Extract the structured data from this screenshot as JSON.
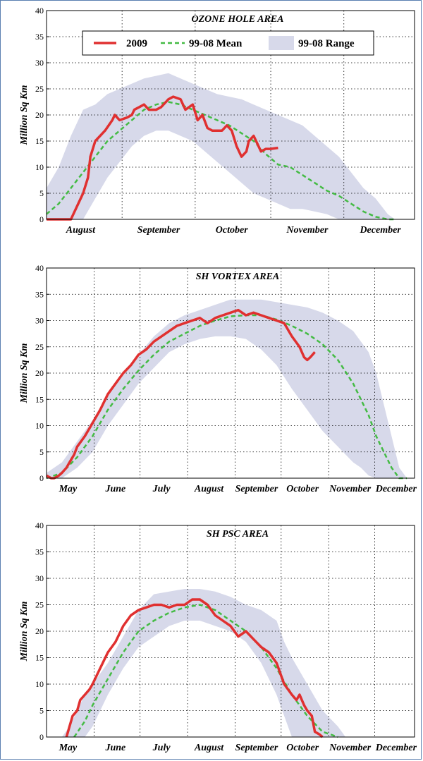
{
  "colors": {
    "obs": "#e03030",
    "mean": "#44bb44",
    "range": "#d7d9ea",
    "frame": "#5a7fb0"
  },
  "legend": {
    "obs": "2009",
    "mean": "99-08 Mean",
    "range": "99-08 Range"
  },
  "chart_data": [
    {
      "type": "area",
      "title": "OZONE HOLE AREA",
      "ylabel": "Million Sq Km",
      "ylim": [
        0,
        40
      ],
      "yticks": [
        0,
        5,
        10,
        15,
        20,
        25,
        30,
        35,
        40
      ],
      "xlim": [
        0,
        151
      ],
      "month_labels": [
        "August",
        "September",
        "October",
        "November",
        "December"
      ],
      "month_label_days": [
        14,
        46,
        76,
        107,
        137
      ],
      "gridlines_days": [
        31,
        61,
        92,
        122
      ],
      "grid": true,
      "legend": "top",
      "series": [
        {
          "name": "2009",
          "style": "solid-red",
          "x": [
            0,
            10,
            12,
            15,
            17,
            18,
            20,
            24,
            27,
            28,
            30,
            33,
            35,
            36,
            38,
            40,
            42,
            45,
            47,
            50,
            52,
            55,
            57,
            60,
            62,
            64,
            66,
            68,
            70,
            72,
            74,
            76,
            78,
            80,
            82,
            83,
            85,
            88,
            90,
            92,
            95
          ],
          "y": [
            0,
            0,
            2,
            5,
            8,
            12,
            15,
            17,
            19,
            20,
            19,
            19.5,
            20,
            21,
            21.5,
            22,
            21,
            21,
            21.5,
            23,
            23.5,
            23,
            21,
            22,
            19,
            20,
            17.5,
            17,
            17,
            17,
            18,
            17,
            14,
            12,
            13,
            15,
            16,
            13,
            13.5,
            13.5,
            13.7
          ]
        },
        {
          "name": "99-08 Mean",
          "style": "dashed-green",
          "x": [
            0,
            5,
            10,
            15,
            20,
            25,
            30,
            35,
            40,
            45,
            50,
            55,
            60,
            65,
            70,
            75,
            80,
            85,
            90,
            95,
            100,
            105,
            110,
            115,
            120,
            125,
            130,
            135,
            140,
            143
          ],
          "y": [
            1,
            3,
            6,
            9,
            12,
            15,
            17,
            19,
            21,
            22,
            22.5,
            22,
            21,
            20,
            19,
            18,
            16.5,
            15,
            12.5,
            10.5,
            10,
            8.5,
            7,
            5.5,
            4.5,
            3,
            1.5,
            0.5,
            0,
            0
          ]
        },
        {
          "name": "99-08 Range",
          "style": "band",
          "x": [
            0,
            5,
            10,
            15,
            20,
            25,
            30,
            35,
            40,
            45,
            50,
            55,
            60,
            65,
            70,
            75,
            80,
            85,
            90,
            95,
            100,
            105,
            110,
            115,
            120,
            125,
            130,
            135,
            140,
            143
          ],
          "low": [
            0,
            0,
            0,
            0,
            4,
            8,
            11,
            14,
            16,
            17,
            17,
            16,
            15,
            13,
            11,
            9,
            7,
            5,
            4,
            3,
            2,
            2,
            1.5,
            1,
            0,
            0,
            0,
            0,
            0,
            0
          ],
          "high": [
            6,
            10,
            16,
            21,
            22,
            24,
            25,
            26,
            27,
            27.5,
            28,
            27,
            26,
            25,
            24,
            23.5,
            23,
            22,
            21,
            20,
            19,
            18,
            16,
            14,
            12,
            9,
            6,
            4,
            1,
            0
          ]
        }
      ]
    },
    {
      "type": "area",
      "title": "SH VORTEX AREA",
      "ylabel": "Million Sq Km",
      "ylim": [
        0,
        40
      ],
      "yticks": [
        0,
        5,
        10,
        15,
        20,
        25,
        30,
        35,
        40
      ],
      "xlim": [
        0,
        240
      ],
      "month_labels": [
        "May",
        "June",
        "July",
        "August",
        "September",
        "October",
        "November",
        "December"
      ],
      "month_label_days": [
        14,
        45,
        75,
        106,
        137,
        167,
        198,
        228
      ],
      "gridlines_days": [
        31,
        61,
        92,
        123,
        153,
        184,
        214
      ],
      "grid": true,
      "series": [
        {
          "name": "2009",
          "style": "solid-red",
          "x": [
            0,
            3,
            5,
            8,
            10,
            13,
            15,
            18,
            20,
            25,
            30,
            35,
            40,
            45,
            50,
            55,
            60,
            65,
            70,
            75,
            80,
            85,
            90,
            95,
            100,
            105,
            110,
            115,
            120,
            125,
            130,
            135,
            140,
            145,
            150,
            155,
            160,
            165,
            168,
            170,
            172,
            175
          ],
          "y": [
            0.5,
            0,
            0,
            0.5,
            1,
            2,
            3,
            4.5,
            6,
            8,
            10.5,
            13,
            16,
            18,
            20,
            21.5,
            23.5,
            24.5,
            26,
            27,
            28,
            29,
            29.5,
            30,
            30.5,
            29.5,
            30.5,
            31,
            31.5,
            32,
            31,
            31.5,
            31,
            30.5,
            30,
            29.5,
            27,
            25,
            23,
            22.5,
            23,
            24
          ]
        },
        {
          "name": "99-08 Mean",
          "style": "dashed-green",
          "x": [
            0,
            10,
            20,
            30,
            40,
            50,
            60,
            70,
            80,
            90,
            100,
            110,
            120,
            130,
            140,
            150,
            160,
            170,
            180,
            190,
            200,
            205,
            210,
            215,
            220,
            225,
            230,
            235
          ],
          "y": [
            0,
            1,
            4,
            8,
            13,
            17,
            20.5,
            23.5,
            26,
            27.5,
            29,
            30,
            30.8,
            31,
            31,
            30.2,
            29,
            27.5,
            25.5,
            22.5,
            18,
            15,
            12,
            8,
            5,
            2,
            0,
            0
          ]
        },
        {
          "name": "99-08 Range",
          "style": "band",
          "x": [
            0,
            10,
            20,
            30,
            40,
            50,
            60,
            70,
            80,
            90,
            100,
            110,
            120,
            130,
            140,
            150,
            160,
            170,
            180,
            190,
            200,
            205,
            210,
            215,
            220,
            225,
            230,
            235
          ],
          "low": [
            0,
            0,
            2,
            5,
            10,
            14,
            18,
            21,
            24,
            25.5,
            26.5,
            27,
            27,
            26.5,
            24.5,
            21.5,
            17,
            13,
            9,
            6,
            3,
            2,
            0.5,
            0,
            0,
            0,
            0,
            0
          ],
          "high": [
            1,
            3,
            7,
            11,
            16,
            20,
            23.5,
            27,
            29.5,
            31,
            32,
            33,
            34,
            34,
            34,
            33.5,
            33,
            32.5,
            31.5,
            30,
            28,
            26,
            24,
            20,
            14,
            8,
            2,
            0
          ]
        }
      ]
    },
    {
      "type": "area",
      "title": "SH PSC AREA",
      "ylabel": "Million Sq Km",
      "ylim": [
        0,
        40
      ],
      "yticks": [
        0,
        5,
        10,
        15,
        20,
        25,
        30,
        35,
        40
      ],
      "xlim": [
        0,
        240
      ],
      "month_labels": [
        "May",
        "June",
        "July",
        "August",
        "September",
        "October",
        "November",
        "December"
      ],
      "month_label_days": [
        14,
        45,
        75,
        106,
        137,
        167,
        198,
        228
      ],
      "gridlines_days": [
        31,
        61,
        92,
        123,
        153,
        184,
        214
      ],
      "grid": true,
      "series": [
        {
          "name": "2009",
          "style": "solid-red",
          "x": [
            13,
            15,
            17,
            20,
            22,
            25,
            28,
            30,
            35,
            40,
            45,
            50,
            55,
            60,
            65,
            70,
            75,
            80,
            85,
            90,
            95,
            100,
            105,
            110,
            115,
            120,
            125,
            130,
            135,
            140,
            145,
            150,
            155,
            160,
            163,
            165,
            168,
            170,
            173,
            175,
            178,
            180
          ],
          "y": [
            0,
            2,
            4,
            5,
            7,
            8,
            9,
            10,
            13,
            16,
            18,
            21,
            23,
            24,
            24.5,
            25,
            25,
            24.5,
            25,
            25,
            26,
            26,
            25,
            23,
            22,
            21,
            19,
            20,
            18.5,
            17,
            16,
            14,
            10,
            8,
            7,
            8,
            6,
            5,
            4,
            1,
            0.5,
            0
          ]
        },
        {
          "name": "99-08 Mean",
          "style": "dashed-green",
          "x": [
            18,
            25,
            30,
            40,
            50,
            60,
            70,
            80,
            90,
            100,
            110,
            120,
            130,
            140,
            150,
            160,
            170,
            180,
            190
          ],
          "y": [
            0,
            3,
            6,
            11,
            16,
            20,
            22,
            23.5,
            24.5,
            25,
            24,
            22,
            20,
            17,
            13,
            8,
            4,
            1,
            0
          ]
        },
        {
          "name": "99-08 Range",
          "style": "band",
          "x": [
            10,
            15,
            20,
            25,
            30,
            40,
            50,
            60,
            70,
            80,
            90,
            100,
            110,
            120,
            130,
            140,
            150,
            155,
            160,
            170,
            180,
            190,
            195
          ],
          "low": [
            0,
            0,
            0,
            0,
            2,
            8,
            13,
            17,
            19,
            21,
            22,
            22,
            21,
            20,
            18,
            14,
            8,
            4,
            0,
            0,
            0,
            0,
            0
          ],
          "high": [
            0,
            2,
            5,
            8,
            10,
            14,
            19,
            24,
            27,
            27.5,
            28,
            28,
            27.5,
            26.5,
            25,
            24,
            22,
            18,
            15,
            10,
            5,
            2,
            0
          ]
        }
      ]
    }
  ]
}
